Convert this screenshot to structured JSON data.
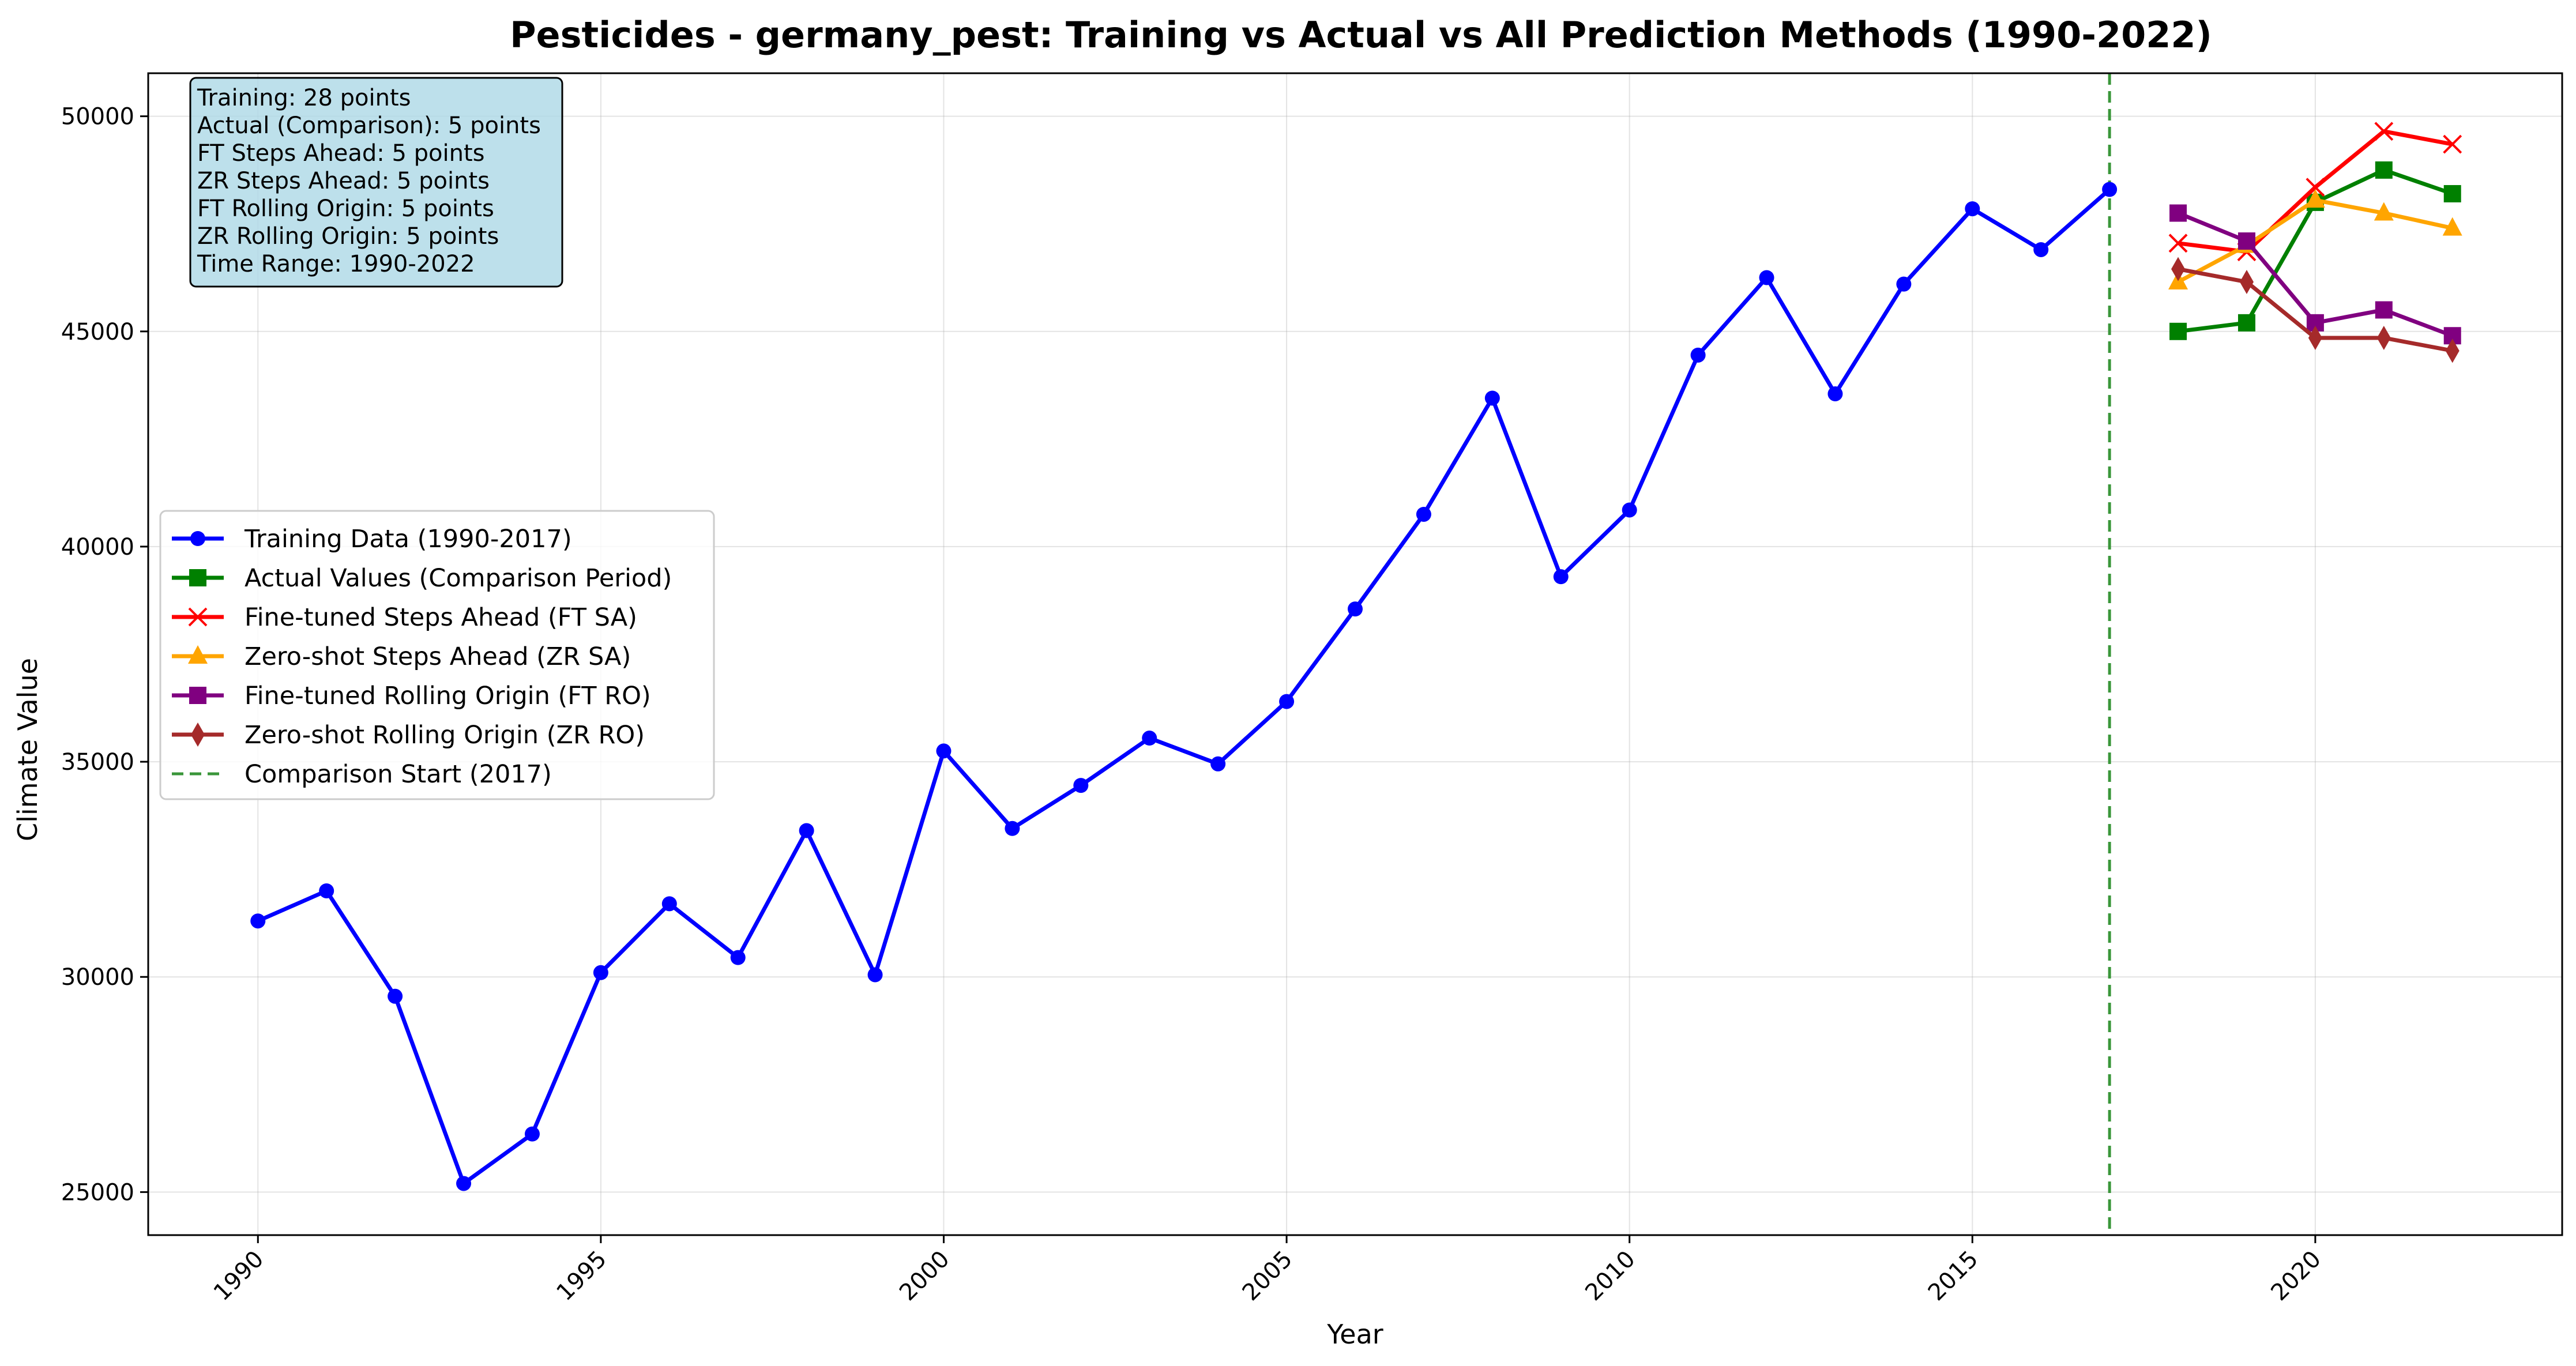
{
  "chart_data": {
    "type": "line",
    "title": "Pesticides - germany_pest: Training vs Actual vs All Prediction Methods (1990-2022)",
    "xlabel": "Year",
    "ylabel": "Climate Value",
    "xlim": [
      1988.4,
      2023.6
    ],
    "ylim": [
      24000,
      51000
    ],
    "xticks": [
      1990,
      1995,
      2000,
      2005,
      2010,
      2015,
      2020
    ],
    "yticks": [
      25000,
      30000,
      35000,
      40000,
      45000,
      50000
    ],
    "grid": true,
    "legend_position": "center-left",
    "comparison_start": 2017,
    "series": [
      {
        "name": "Training Data (1990-2017)",
        "color": "#0000ff",
        "marker": "circle",
        "x": [
          1990,
          1991,
          1992,
          1993,
          1994,
          1995,
          1996,
          1997,
          1998,
          1999,
          2000,
          2001,
          2002,
          2003,
          2004,
          2005,
          2006,
          2007,
          2008,
          2009,
          2010,
          2011,
          2012,
          2013,
          2014,
          2015,
          2016,
          2017
        ],
        "y": [
          31300,
          32000,
          29550,
          25200,
          26350,
          30100,
          31700,
          30450,
          33400,
          30050,
          35250,
          33450,
          34450,
          35550,
          34950,
          36400,
          38550,
          40750,
          43450,
          39300,
          40850,
          44450,
          46250,
          43550,
          46100,
          47850,
          46900,
          48300
        ]
      },
      {
        "name": "Actual Values (Comparison Period)",
        "color": "#008000",
        "marker": "square",
        "x": [
          2018,
          2019,
          2020,
          2021,
          2022
        ],
        "y": [
          45000,
          45200,
          48000,
          48750,
          48200
        ]
      },
      {
        "name": "Fine-tuned Steps Ahead (FT SA)",
        "color": "#ff0000",
        "marker": "x",
        "x": [
          2018,
          2019,
          2020,
          2021,
          2022
        ],
        "y": [
          47050,
          46850,
          48350,
          49650,
          49350
        ]
      },
      {
        "name": "Zero-shot Steps Ahead (ZR SA)",
        "color": "#ffa500",
        "marker": "triangle",
        "x": [
          2018,
          2019,
          2020,
          2021,
          2022
        ],
        "y": [
          46150,
          47000,
          48050,
          47750,
          47400
        ]
      },
      {
        "name": "Fine-tuned Rolling Origin (FT RO)",
        "color": "#800080",
        "marker": "square",
        "x": [
          2018,
          2019,
          2020,
          2021,
          2022
        ],
        "y": [
          47750,
          47100,
          45200,
          45500,
          44900
        ]
      },
      {
        "name": "Zero-shot Rolling Origin (ZR RO)",
        "color": "#a52a2a",
        "marker": "diamond",
        "x": [
          2018,
          2019,
          2020,
          2021,
          2022
        ],
        "y": [
          46450,
          46150,
          44850,
          44850,
          44550
        ]
      }
    ],
    "comparison_line": {
      "name": "Comparison Start (2017)",
      "color": "#3a963a"
    },
    "info_box": [
      "Training: 28 points",
      "Actual (Comparison): 5 points",
      "FT Steps Ahead: 5 points",
      "ZR Steps Ahead: 5 points",
      "FT Rolling Origin: 5 points",
      "ZR Rolling Origin: 5 points",
      "Time Range: 1990-2022"
    ]
  }
}
